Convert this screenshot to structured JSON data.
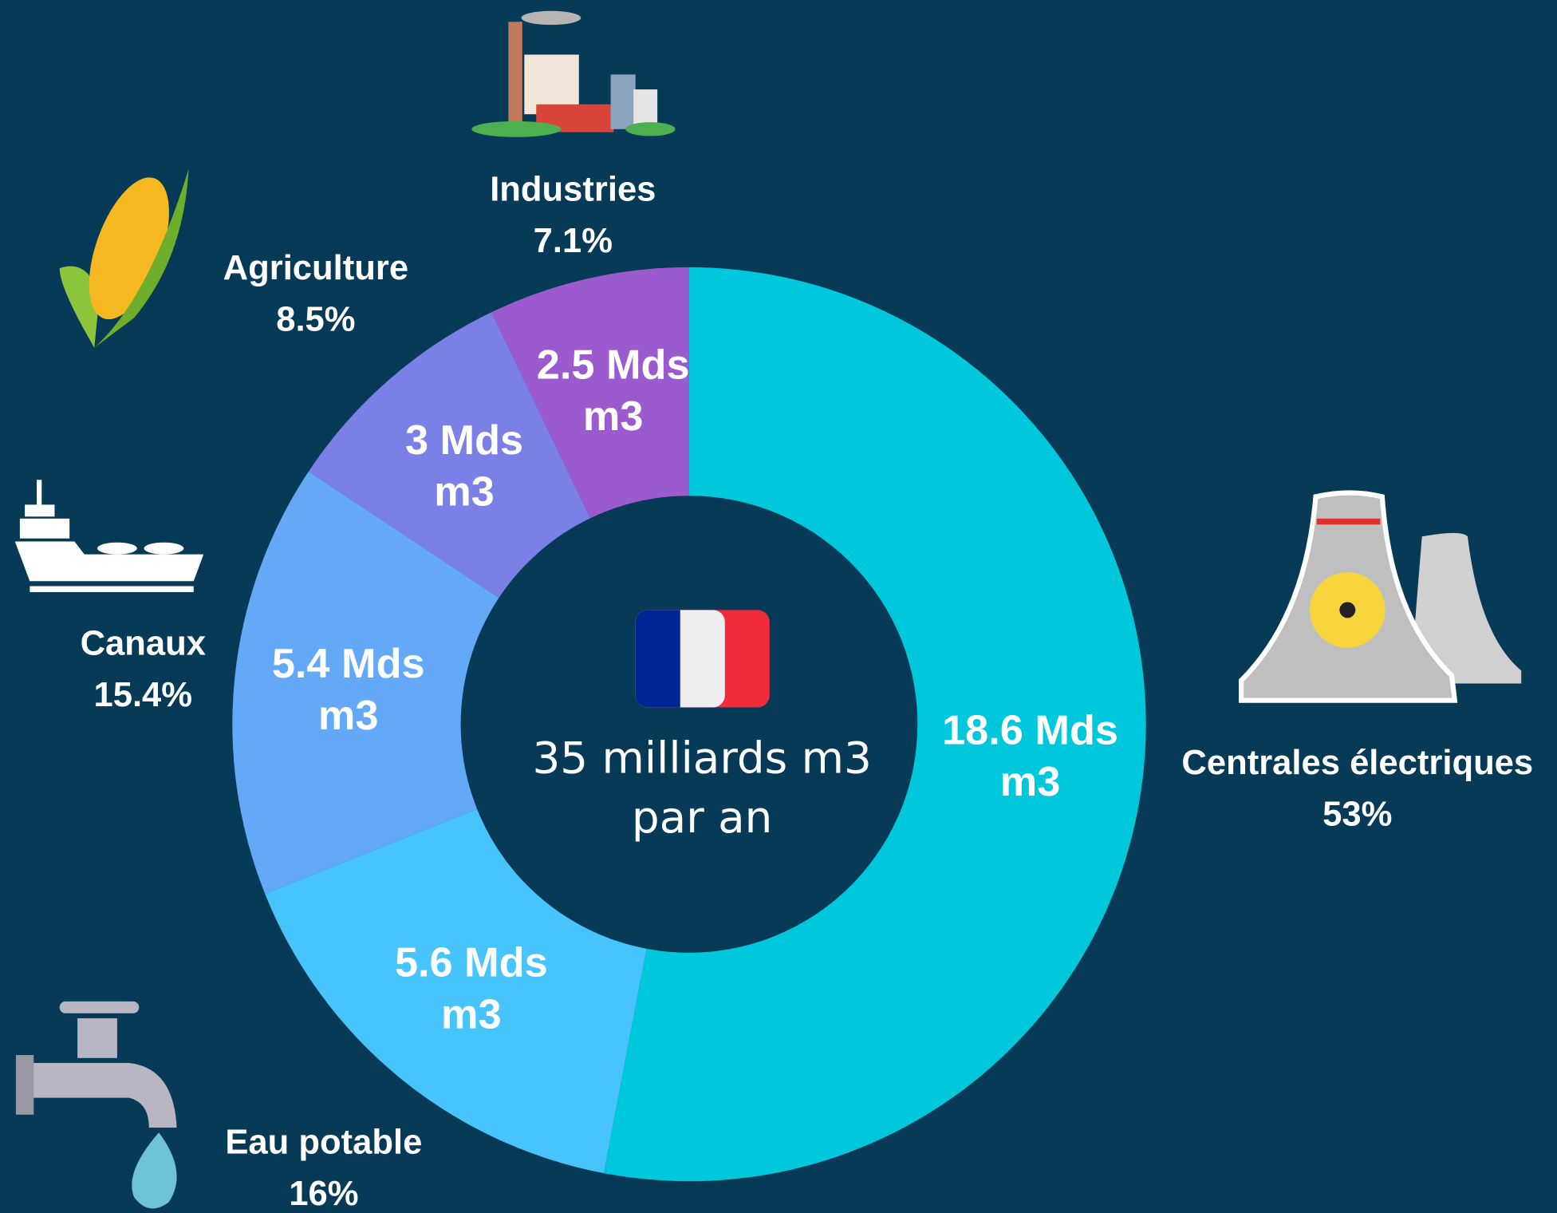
{
  "chart_data": {
    "type": "donut",
    "title": "35 milliards m3\npar an",
    "categories": [
      "Centrales électriques",
      "Eau potable",
      "Canaux",
      "Agriculture",
      "Industries"
    ],
    "values": [
      18.6,
      5.6,
      5.4,
      3,
      2.5
    ],
    "value_labels": [
      "18.6 Mds\nm3",
      "5.6 Mds\nm3",
      "5.4 Mds\nm3",
      "3 Mds\nm3",
      "2.5 Mds\nm3"
    ],
    "percents": [
      53,
      16,
      15.4,
      8.5,
      7.1
    ],
    "percent_labels": [
      "53%",
      "16%",
      "15.4%",
      "8.5%",
      "7.1%"
    ],
    "colors": [
      "#00c8dc",
      "#48c4fc",
      "#64a8f8",
      "#7b80e6",
      "#9b5bcf"
    ]
  }
}
